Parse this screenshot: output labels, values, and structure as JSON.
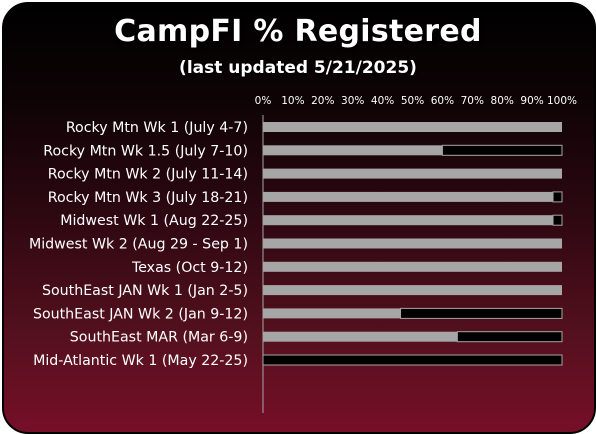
{
  "header": {
    "title": "CampFI % Registered",
    "subtitle": "(last updated 5/21/2025)"
  },
  "colors": {
    "registered": "#a6a6a6",
    "remaining": "#000000",
    "text": "#ffffff",
    "axis": "#a6a6a6"
  },
  "chart_data": {
    "type": "bar",
    "orientation": "horizontal",
    "stacked": true,
    "title": "CampFI % Registered",
    "subtitle": "(last updated 5/21/2025)",
    "xlim": [
      0,
      100
    ],
    "x_ticks": [
      "0%",
      "10%",
      "20%",
      "30%",
      "40%",
      "50%",
      "60%",
      "70%",
      "80%",
      "90%",
      "100%"
    ],
    "x_axis_position": "top",
    "grid": false,
    "categories": [
      "Rocky Mtn Wk 1 (July 4-7)",
      "Rocky Mtn Wk 1.5 (July 7-10)",
      "Rocky Mtn Wk 2 (July 11-14)",
      "Rocky Mtn Wk 3 (July 18-21)",
      "Midwest Wk 1 (Aug 22-25)",
      "Midwest Wk 2 (Aug 29 - Sep 1)",
      "Texas (Oct 9-12)",
      "SouthEast JAN Wk 1 (Jan 2-5)",
      "SouthEast JAN Wk 2 (Jan 9-12)",
      "SouthEast MAR  (Mar 6-9)",
      "Mid-Atlantic Wk 1 (May 22-25)"
    ],
    "series": [
      {
        "values": [
          100,
          60,
          100,
          97,
          97,
          100,
          100,
          100,
          46,
          65,
          0
        ]
      },
      {
        "values": [
          0,
          40,
          0,
          3,
          3,
          0,
          0,
          0,
          54,
          35,
          100
        ]
      }
    ]
  }
}
